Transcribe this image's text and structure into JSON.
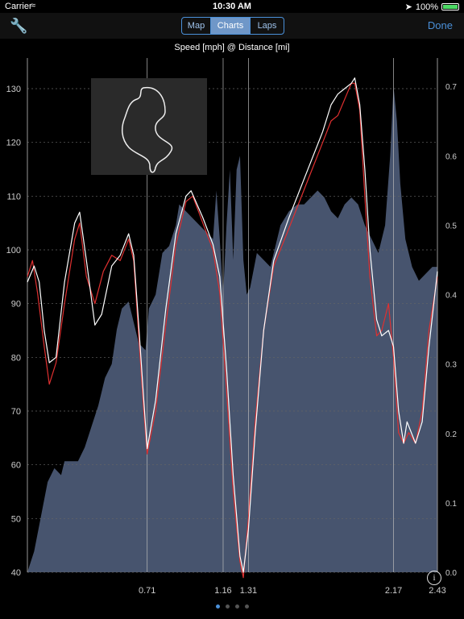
{
  "status": {
    "carrier": "Carrier",
    "time": "10:30 AM",
    "battery": "100%"
  },
  "nav": {
    "tabs": [
      "Map",
      "Charts",
      "Laps"
    ],
    "active": "Charts",
    "done": "Done"
  },
  "chart_data": {
    "type": "line",
    "title": "Speed [mph] @ Distance [mi]",
    "x_ticks": [
      "0.71",
      "1.16",
      "1.31",
      "2.17",
      "2.43"
    ],
    "x_tick_values": [
      0.71,
      1.16,
      1.31,
      2.17,
      2.43
    ],
    "xlim": [
      0,
      2.43
    ],
    "ylim": [
      40,
      133
    ],
    "y_ticks": [
      40,
      50,
      60,
      70,
      80,
      90,
      100,
      110,
      120,
      130
    ],
    "y2lim": [
      0,
      0.72
    ],
    "y2_ticks": [
      "0.0",
      "0.1",
      "0.2",
      "0.3",
      "0.4",
      "0.5",
      "0.6",
      "0.7"
    ],
    "y2_tick_values": [
      0,
      0.1,
      0.2,
      0.3,
      0.4,
      0.5,
      0.6,
      0.7
    ],
    "series": [
      {
        "color": "#e03030",
        "points": [
          [
            0,
            95
          ],
          [
            0.03,
            98
          ],
          [
            0.06,
            92
          ],
          [
            0.1,
            82
          ],
          [
            0.13,
            75
          ],
          [
            0.17,
            79
          ],
          [
            0.22,
            90
          ],
          [
            0.28,
            102
          ],
          [
            0.31,
            105
          ],
          [
            0.35,
            95
          ],
          [
            0.4,
            90
          ],
          [
            0.45,
            96
          ],
          [
            0.5,
            99
          ],
          [
            0.55,
            98
          ],
          [
            0.6,
            102
          ],
          [
            0.63,
            98
          ],
          [
            0.66,
            84
          ],
          [
            0.69,
            70
          ],
          [
            0.71,
            62
          ],
          [
            0.76,
            70
          ],
          [
            0.82,
            86
          ],
          [
            0.88,
            101
          ],
          [
            0.94,
            109
          ],
          [
            0.98,
            110
          ],
          [
            1.04,
            105
          ],
          [
            1.1,
            100
          ],
          [
            1.14,
            92
          ],
          [
            1.18,
            74
          ],
          [
            1.22,
            55
          ],
          [
            1.26,
            42
          ],
          [
            1.28,
            39
          ],
          [
            1.31,
            50
          ],
          [
            1.35,
            68
          ],
          [
            1.4,
            85
          ],
          [
            1.46,
            97
          ],
          [
            1.55,
            104
          ],
          [
            1.65,
            112
          ],
          [
            1.75,
            120
          ],
          [
            1.8,
            124
          ],
          [
            1.84,
            125
          ],
          [
            1.88,
            128
          ],
          [
            1.92,
            131
          ],
          [
            1.94,
            131
          ],
          [
            1.97,
            126
          ],
          [
            2.0,
            110
          ],
          [
            2.03,
            95
          ],
          [
            2.07,
            84
          ],
          [
            2.1,
            85
          ],
          [
            2.14,
            90
          ],
          [
            2.17,
            80
          ],
          [
            2.2,
            66
          ],
          [
            2.23,
            64
          ],
          [
            2.26,
            66
          ],
          [
            2.3,
            64
          ],
          [
            2.34,
            70
          ],
          [
            2.38,
            85
          ],
          [
            2.43,
            95
          ]
        ]
      },
      {
        "color": "#ffffff",
        "points": [
          [
            0,
            94
          ],
          [
            0.04,
            97
          ],
          [
            0.07,
            94
          ],
          [
            0.1,
            85
          ],
          [
            0.13,
            79
          ],
          [
            0.17,
            80
          ],
          [
            0.22,
            94
          ],
          [
            0.28,
            105
          ],
          [
            0.31,
            107
          ],
          [
            0.35,
            98
          ],
          [
            0.4,
            86
          ],
          [
            0.44,
            88
          ],
          [
            0.5,
            97
          ],
          [
            0.55,
            99
          ],
          [
            0.6,
            103
          ],
          [
            0.63,
            99
          ],
          [
            0.66,
            86
          ],
          [
            0.69,
            72
          ],
          [
            0.71,
            63
          ],
          [
            0.76,
            72
          ],
          [
            0.82,
            89
          ],
          [
            0.88,
            103
          ],
          [
            0.94,
            110
          ],
          [
            0.97,
            111
          ],
          [
            1.04,
            106
          ],
          [
            1.1,
            101
          ],
          [
            1.14,
            95
          ],
          [
            1.18,
            78
          ],
          [
            1.22,
            58
          ],
          [
            1.26,
            43
          ],
          [
            1.28,
            40
          ],
          [
            1.31,
            48
          ],
          [
            1.35,
            66
          ],
          [
            1.4,
            85
          ],
          [
            1.46,
            98
          ],
          [
            1.55,
            106
          ],
          [
            1.65,
            114
          ],
          [
            1.75,
            122
          ],
          [
            1.8,
            127
          ],
          [
            1.84,
            129
          ],
          [
            1.88,
            130
          ],
          [
            1.92,
            131
          ],
          [
            1.94,
            132
          ],
          [
            1.97,
            127
          ],
          [
            2.0,
            115
          ],
          [
            2.03,
            100
          ],
          [
            2.07,
            87
          ],
          [
            2.1,
            84
          ],
          [
            2.14,
            85
          ],
          [
            2.17,
            82
          ],
          [
            2.2,
            70
          ],
          [
            2.23,
            64
          ],
          [
            2.25,
            68
          ],
          [
            2.3,
            64
          ],
          [
            2.34,
            68
          ],
          [
            2.38,
            82
          ],
          [
            2.43,
            96
          ]
        ]
      }
    ],
    "area": {
      "color": "#47546e",
      "points": [
        [
          0,
          0.0
        ],
        [
          0.04,
          0.03
        ],
        [
          0.08,
          0.08
        ],
        [
          0.12,
          0.13
        ],
        [
          0.16,
          0.15
        ],
        [
          0.2,
          0.14
        ],
        [
          0.22,
          0.16
        ],
        [
          0.26,
          0.16
        ],
        [
          0.3,
          0.16
        ],
        [
          0.34,
          0.18
        ],
        [
          0.38,
          0.21
        ],
        [
          0.42,
          0.24
        ],
        [
          0.46,
          0.28
        ],
        [
          0.5,
          0.3
        ],
        [
          0.53,
          0.35
        ],
        [
          0.56,
          0.38
        ],
        [
          0.6,
          0.39
        ],
        [
          0.63,
          0.36
        ],
        [
          0.66,
          0.33
        ],
        [
          0.7,
          0.32
        ],
        [
          0.72,
          0.38
        ],
        [
          0.76,
          0.4
        ],
        [
          0.8,
          0.46
        ],
        [
          0.84,
          0.47
        ],
        [
          0.88,
          0.5
        ],
        [
          0.9,
          0.53
        ],
        [
          0.94,
          0.52
        ],
        [
          0.98,
          0.51
        ],
        [
          1.02,
          0.5
        ],
        [
          1.06,
          0.49
        ],
        [
          1.1,
          0.48
        ],
        [
          1.12,
          0.55
        ],
        [
          1.14,
          0.48
        ],
        [
          1.16,
          0.4
        ],
        [
          1.18,
          0.5
        ],
        [
          1.2,
          0.58
        ],
        [
          1.22,
          0.45
        ],
        [
          1.24,
          0.58
        ],
        [
          1.26,
          0.6
        ],
        [
          1.28,
          0.45
        ],
        [
          1.3,
          0.4
        ],
        [
          1.32,
          0.41
        ],
        [
          1.36,
          0.46
        ],
        [
          1.4,
          0.45
        ],
        [
          1.44,
          0.44
        ],
        [
          1.5,
          0.5
        ],
        [
          1.55,
          0.52
        ],
        [
          1.6,
          0.53
        ],
        [
          1.64,
          0.53
        ],
        [
          1.68,
          0.54
        ],
        [
          1.72,
          0.55
        ],
        [
          1.76,
          0.54
        ],
        [
          1.8,
          0.52
        ],
        [
          1.84,
          0.51
        ],
        [
          1.88,
          0.53
        ],
        [
          1.92,
          0.54
        ],
        [
          1.96,
          0.53
        ],
        [
          2.0,
          0.5
        ],
        [
          2.04,
          0.48
        ],
        [
          2.08,
          0.46
        ],
        [
          2.12,
          0.5
        ],
        [
          2.15,
          0.6
        ],
        [
          2.17,
          0.7
        ],
        [
          2.19,
          0.65
        ],
        [
          2.21,
          0.56
        ],
        [
          2.24,
          0.48
        ],
        [
          2.28,
          0.44
        ],
        [
          2.32,
          0.42
        ],
        [
          2.36,
          0.43
        ],
        [
          2.4,
          0.44
        ],
        [
          2.43,
          0.44
        ]
      ]
    },
    "vlines": [
      0.71,
      1.16,
      1.31,
      2.17
    ],
    "grid": true
  },
  "minimap": {
    "label": "track-map"
  }
}
